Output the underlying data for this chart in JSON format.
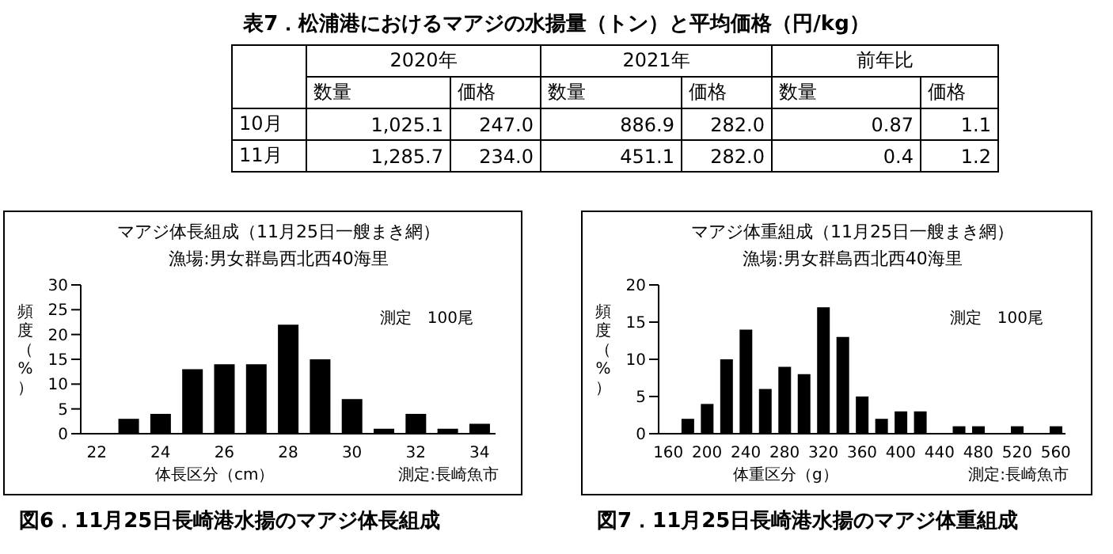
{
  "chart_data": [
    {
      "type": "other",
      "title": "表7．松浦港におけるマアジの水揚量（トン）と平均価格（円/kg）",
      "annotations": [
        "2020年",
        "2021年",
        "前年比"
      ],
      "categories": [
        "数量",
        "価格",
        "数量",
        "価格",
        "数量",
        "価格"
      ],
      "y_categories": [
        "10月",
        "11月"
      ],
      "cell_labels": [
        [
          "1,025.1",
          "247.0",
          "886.9",
          "282.0",
          "0.87",
          "1.1"
        ],
        [
          "1,285.7",
          "234.0",
          "451.1",
          "282.0",
          "0.4",
          "1.2"
        ]
      ]
    },
    {
      "type": "bar",
      "title": "マアジ体長組成（11月25日一艘まき網）",
      "subtitle": "漁場:男女群島西北西40海里",
      "xlabel": "体長区分（cm）",
      "ylabel": "頻度（%）",
      "annotations": [
        "測定　100尾",
        "測定:長崎魚市",
        "図6．11月25日長崎港水揚のマアジ体長組成"
      ],
      "categories": [
        "22",
        null,
        "24",
        null,
        "26",
        null,
        "28",
        null,
        "30",
        null,
        "32",
        null,
        "34"
      ],
      "values": [
        0,
        3,
        4,
        13,
        14,
        14,
        22,
        15,
        7,
        1,
        4,
        1,
        2
      ],
      "color": "#000000",
      "ylim": [
        0,
        30
      ],
      "yticks": [
        0,
        5,
        10,
        15,
        20,
        25,
        30
      ]
    },
    {
      "type": "bar",
      "title": "マアジ体重組成（11月25日一艘まき網）",
      "subtitle": "漁場:男女群島西北西40海里",
      "xlabel": "体重区分（g）",
      "ylabel": "頻度（%）",
      "annotations": [
        "測定　100尾",
        "測定:長崎魚市",
        "図7．11月25日長崎港水揚のマアジ体重組成"
      ],
      "categories": [
        "160",
        null,
        "200",
        null,
        "240",
        null,
        "280",
        null,
        "320",
        null,
        "360",
        null,
        "400",
        null,
        "440",
        null,
        "480",
        null,
        "520",
        null,
        "560"
      ],
      "values": [
        0,
        2,
        4,
        10,
        14,
        6,
        9,
        8,
        17,
        13,
        5,
        2,
        3,
        3,
        0,
        1,
        1,
        0,
        1,
        0,
        1
      ],
      "color": "#000000",
      "ylim": [
        0,
        20
      ],
      "yticks": [
        0,
        5,
        10,
        15,
        20
      ]
    }
  ]
}
